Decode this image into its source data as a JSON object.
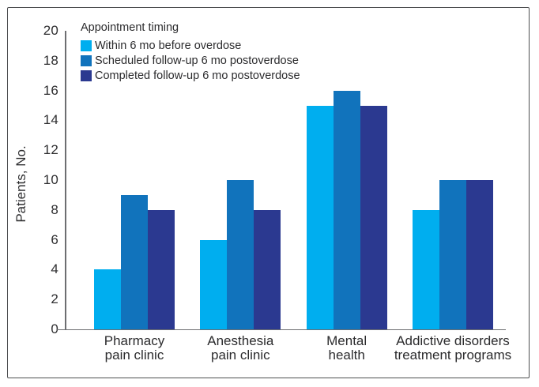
{
  "figure": {
    "background": "#FFFFFF",
    "border_color": "#4D4E50",
    "axis_color": "#6D6E71",
    "text_color": "#2B2B2D"
  },
  "chart_data": {
    "type": "bar",
    "title": "",
    "xlabel": "",
    "ylabel": "Patients, No.",
    "ylim": [
      0,
      20
    ],
    "yticks": [
      0,
      2,
      4,
      6,
      8,
      10,
      12,
      14,
      16,
      18,
      20
    ],
    "grid": false,
    "legend_title": "Appointment timing",
    "legend_position": "top-left-inside",
    "categories": [
      "Pharmacy pain clinic",
      "Anesthesia pain clinic",
      "Mental health",
      "Addictive disorders treatment programs"
    ],
    "category_lines": [
      [
        "Pharmacy",
        "pain clinic"
      ],
      [
        "Anesthesia",
        "pain clinic"
      ],
      [
        "Mental",
        "health"
      ],
      [
        "Addictive disorders",
        "treatment programs"
      ]
    ],
    "series": [
      {
        "name": "Within 6 mo before overdose",
        "color": "#00AEEF",
        "values": [
          4,
          6,
          15,
          8
        ]
      },
      {
        "name": "Scheduled follow-up 6 mo postoverdose",
        "color": "#1173BC",
        "values": [
          9,
          10,
          16,
          10
        ]
      },
      {
        "name": "Completed follow-up 6 mo postoverdose",
        "color": "#2B3990",
        "values": [
          8,
          8,
          15,
          10
        ]
      }
    ]
  }
}
